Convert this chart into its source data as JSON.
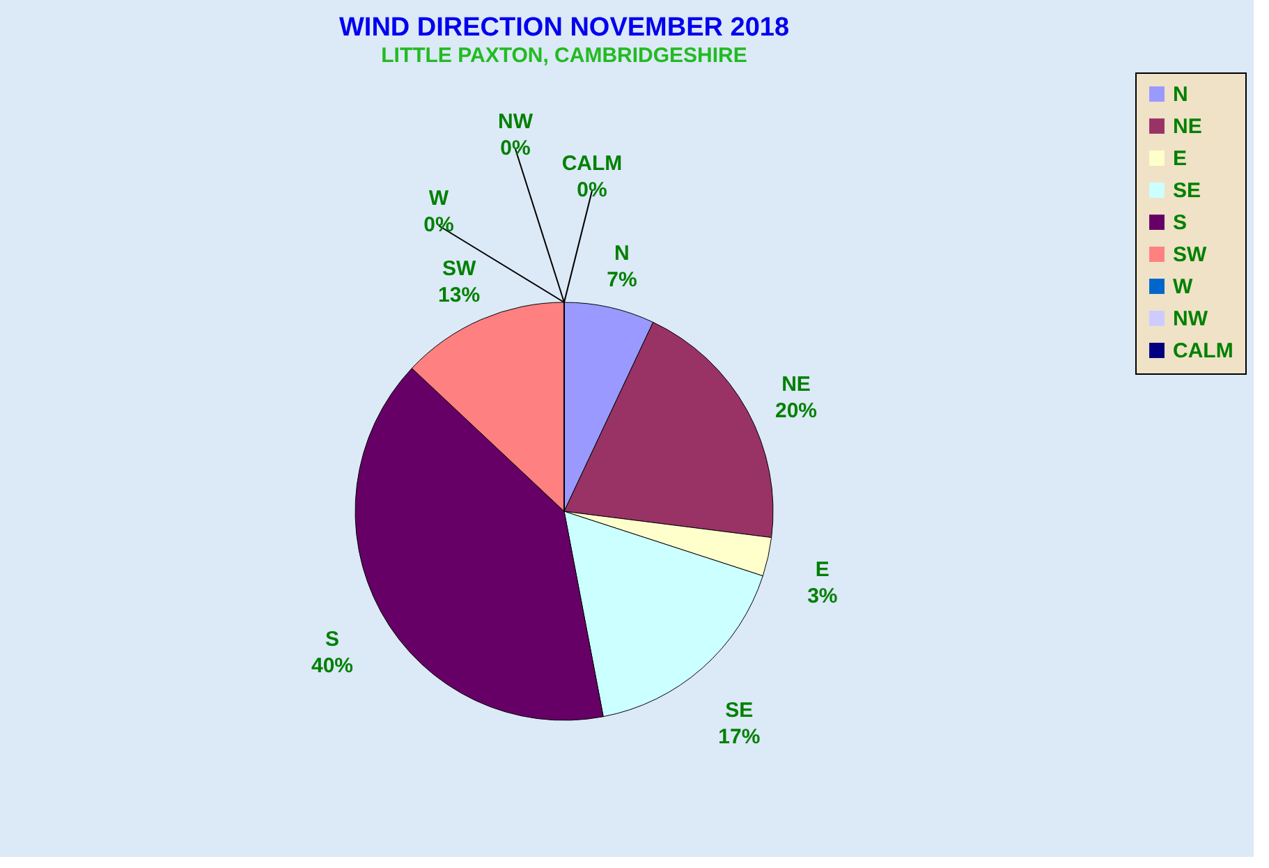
{
  "chart_data": {
    "type": "pie",
    "title": "WIND DIRECTION NOVEMBER 2018",
    "subtitle": "LITTLE PAXTON, CAMBRIDGESHIRE",
    "categories": [
      "N",
      "NE",
      "E",
      "SE",
      "S",
      "SW",
      "W",
      "NW",
      "CALM"
    ],
    "values": [
      7,
      20,
      3,
      17,
      40,
      13,
      0,
      0,
      0
    ],
    "colors": [
      "#9999ff",
      "#993366",
      "#ffffcc",
      "#ccffff",
      "#660066",
      "#ff8080",
      "#0066cc",
      "#ccccff",
      "#000080"
    ],
    "value_labels": [
      "7%",
      "20%",
      "3%",
      "17%",
      "40%",
      "13%",
      "0%",
      "0%",
      "0%"
    ],
    "legend": "right"
  }
}
